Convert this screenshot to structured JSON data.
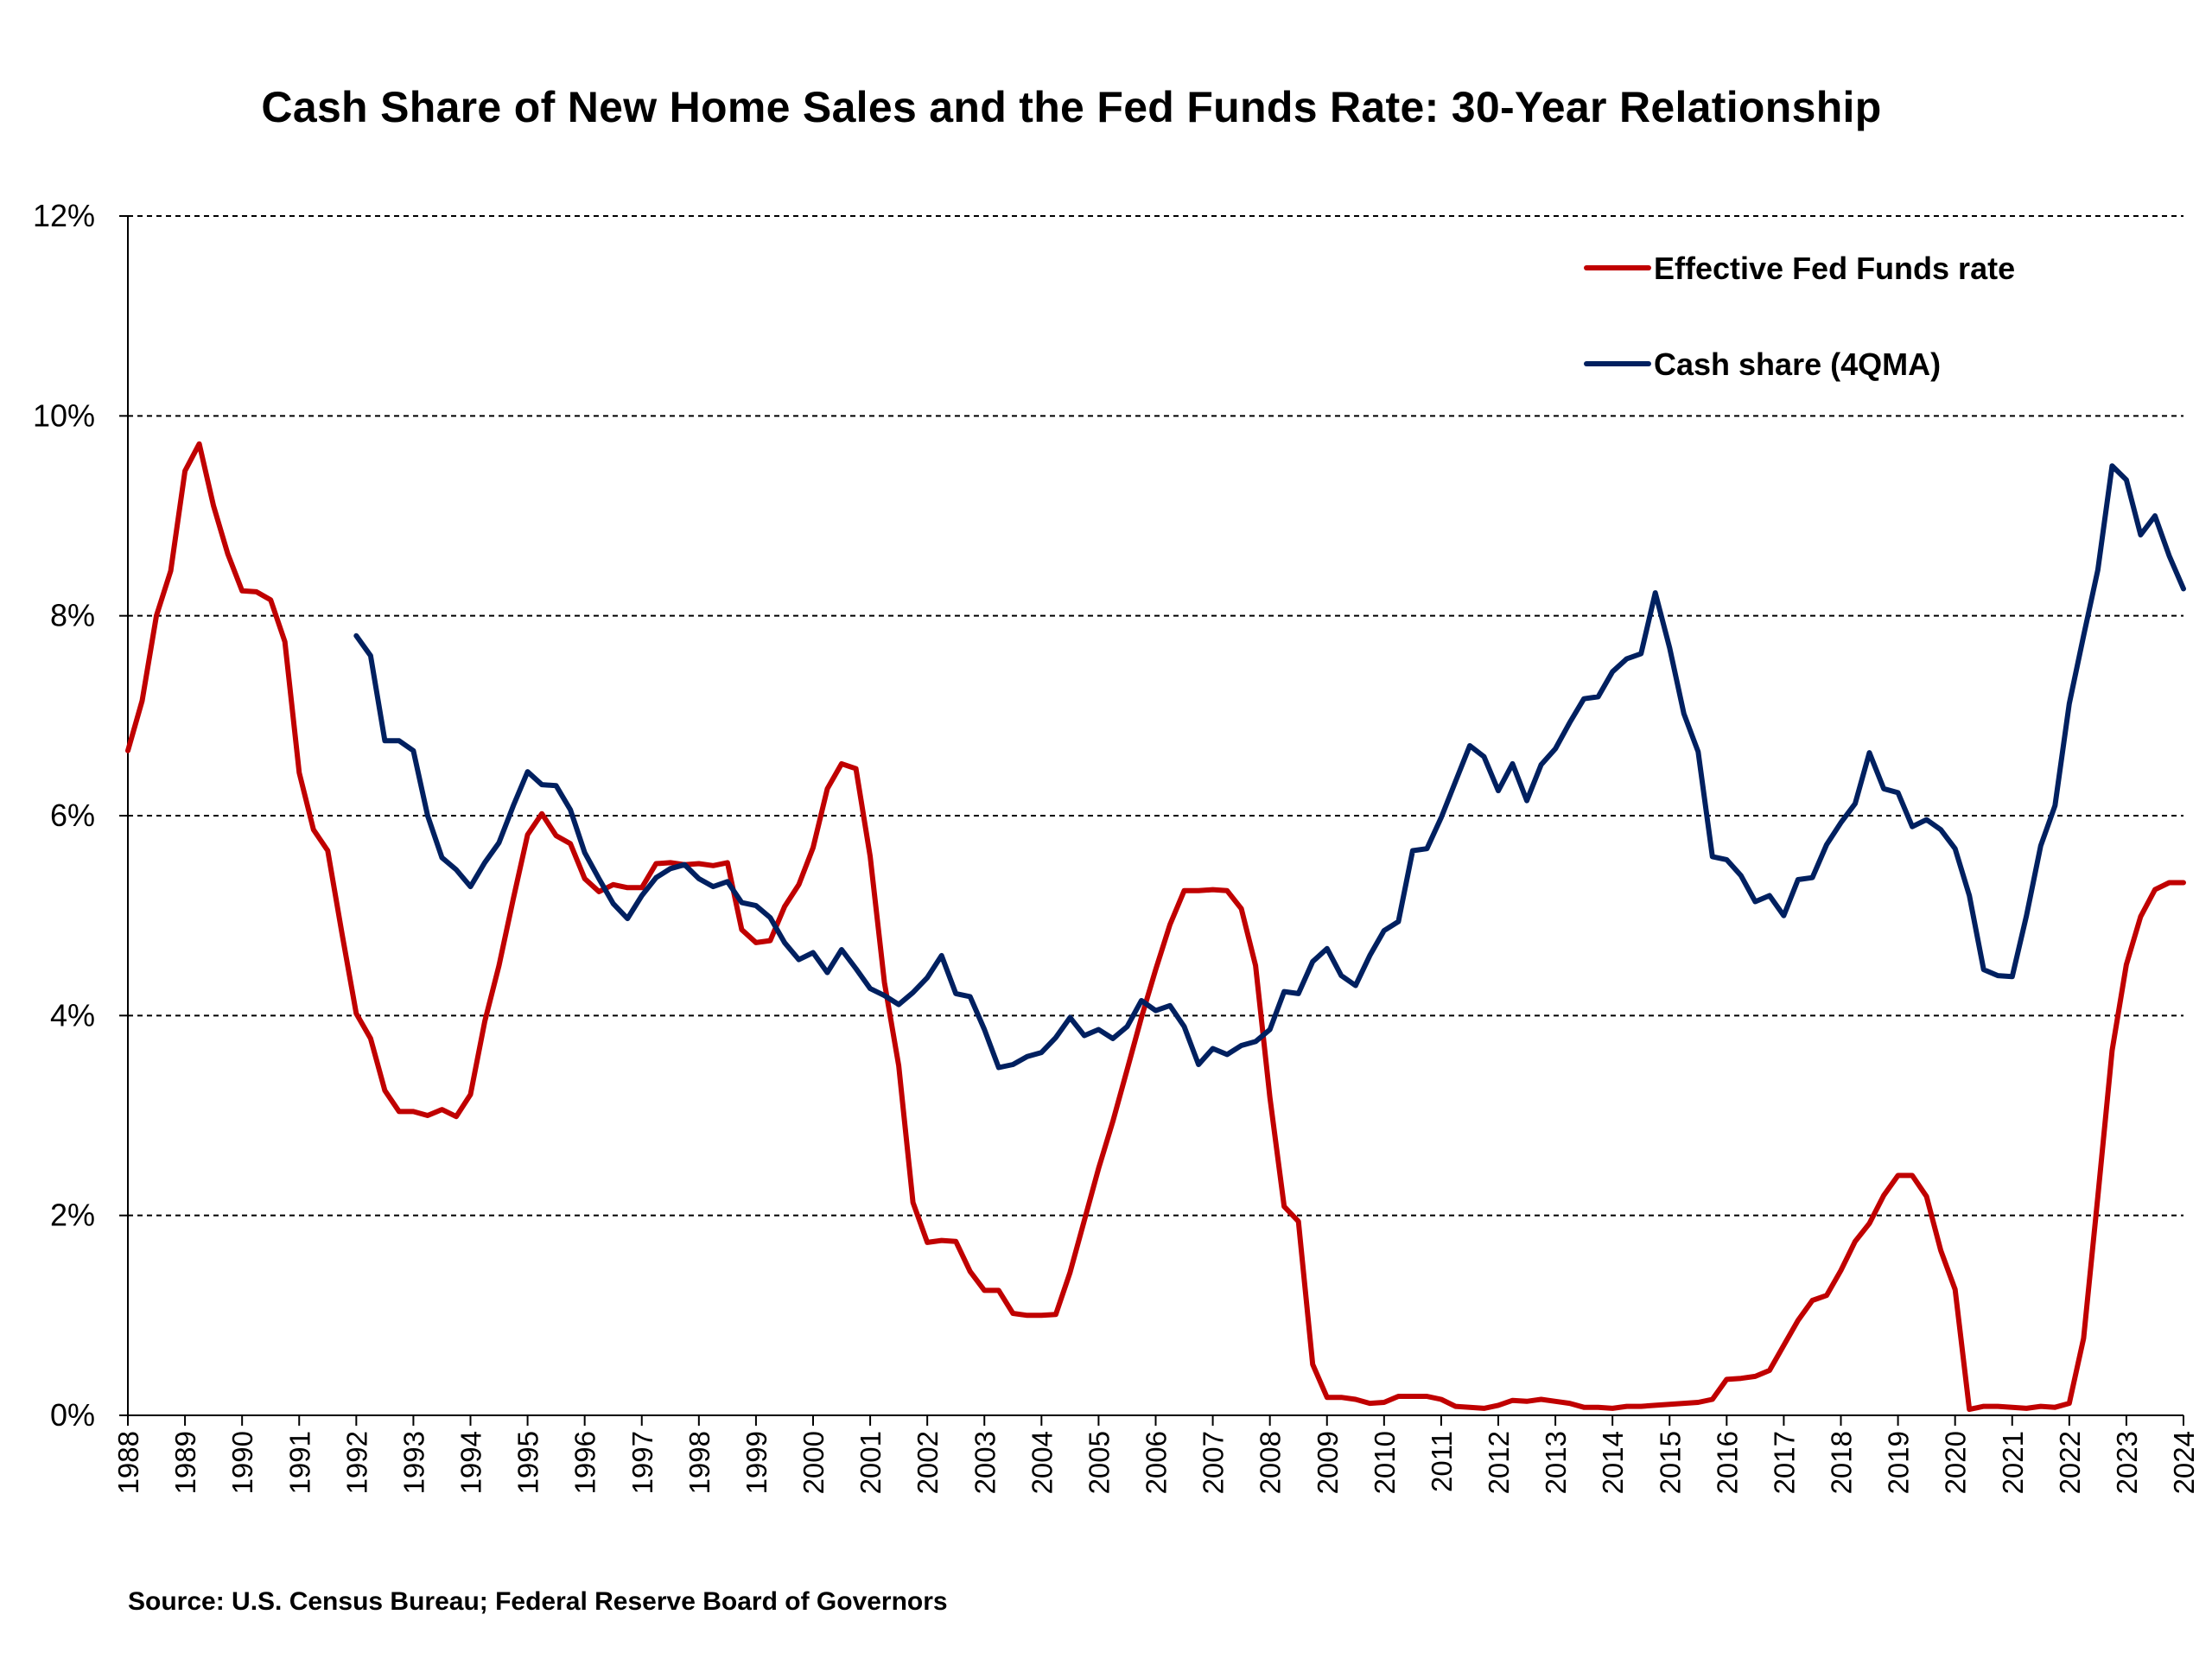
{
  "chart_data": {
    "type": "line",
    "title": "Cash Share of New Home Sales and the Fed Funds Rate: 30-Year Relationship",
    "xlabel": "",
    "ylabel": "",
    "source": "Source: U.S. Census Bureau; Federal Reserve Board of Governors",
    "x_tick_labels": [
      "1988",
      "1989",
      "1990",
      "1991",
      "1992",
      "1993",
      "1994",
      "1995",
      "1996",
      "1997",
      "1998",
      "1999",
      "2000",
      "2001",
      "2002",
      "2003",
      "2004",
      "2005",
      "2006",
      "2007",
      "2008",
      "2009",
      "2010",
      "2011",
      "2012",
      "2013",
      "2014",
      "2015",
      "2016",
      "2017",
      "2018",
      "2019",
      "2020",
      "2021",
      "2022",
      "2023",
      "2024"
    ],
    "y_tick_labels": [
      "0%",
      "2%",
      "4%",
      "6%",
      "8%",
      "10%",
      "12%"
    ],
    "ylim": [
      0,
      12
    ],
    "xlim": [
      1988,
      2024
    ],
    "grid": "horizontal dashed",
    "legend_position": "top-right",
    "colors": {
      "fed_funds": "#c00000",
      "cash_share": "#002060"
    },
    "series": [
      {
        "name": "Effective Fed Funds rate",
        "color": "#c00000",
        "x": [
          1988.0,
          1988.25,
          1988.5,
          1988.75,
          1989.0,
          1989.25,
          1989.5,
          1989.75,
          1990.0,
          1990.25,
          1990.5,
          1990.75,
          1991.0,
          1991.25,
          1991.5,
          1991.75,
          1992.0,
          1992.25,
          1992.5,
          1992.75,
          1993.0,
          1993.25,
          1993.5,
          1993.75,
          1994.0,
          1994.25,
          1994.5,
          1994.75,
          1995.0,
          1995.25,
          1995.5,
          1995.75,
          1996.0,
          1996.25,
          1996.5,
          1996.75,
          1997.0,
          1997.25,
          1997.5,
          1997.75,
          1998.0,
          1998.25,
          1998.5,
          1998.75,
          1999.0,
          1999.25,
          1999.5,
          1999.75,
          2000.0,
          2000.25,
          2000.5,
          2000.75,
          2001.0,
          2001.25,
          2001.5,
          2001.75,
          2002.0,
          2002.25,
          2002.5,
          2002.75,
          2003.0,
          2003.25,
          2003.5,
          2003.75,
          2004.0,
          2004.25,
          2004.5,
          2004.75,
          2005.0,
          2005.25,
          2005.5,
          2005.75,
          2006.0,
          2006.25,
          2006.5,
          2006.75,
          2007.0,
          2007.25,
          2007.5,
          2007.75,
          2008.0,
          2008.25,
          2008.5,
          2008.75,
          2009.0,
          2009.25,
          2009.5,
          2009.75,
          2010.0,
          2010.25,
          2010.5,
          2010.75,
          2011.0,
          2011.25,
          2011.5,
          2011.75,
          2012.0,
          2012.25,
          2012.5,
          2012.75,
          2013.0,
          2013.25,
          2013.5,
          2013.75,
          2014.0,
          2014.25,
          2014.5,
          2014.75,
          2015.0,
          2015.25,
          2015.5,
          2015.75,
          2016.0,
          2016.25,
          2016.5,
          2016.75,
          2017.0,
          2017.25,
          2017.5,
          2017.75,
          2018.0,
          2018.25,
          2018.5,
          2018.75,
          2019.0,
          2019.25,
          2019.5,
          2019.75,
          2020.0,
          2020.25,
          2020.5,
          2020.75,
          2021.0,
          2021.25,
          2021.5,
          2021.75,
          2022.0,
          2022.25,
          2022.5,
          2022.75,
          2023.0,
          2023.25,
          2023.5,
          2023.75,
          2024.0
        ],
        "values": [
          6.65,
          7.15,
          8.0,
          8.45,
          9.45,
          9.72,
          9.1,
          8.62,
          8.25,
          8.24,
          8.16,
          7.74,
          6.43,
          5.86,
          5.65,
          4.82,
          4.02,
          3.77,
          3.25,
          3.04,
          3.04,
          3.0,
          3.06,
          2.99,
          3.21,
          3.94,
          4.5,
          5.17,
          5.81,
          6.02,
          5.8,
          5.72,
          5.37,
          5.24,
          5.31,
          5.28,
          5.28,
          5.52,
          5.53,
          5.51,
          5.52,
          5.5,
          5.53,
          4.86,
          4.73,
          4.75,
          5.09,
          5.31,
          5.68,
          6.27,
          6.52,
          6.47,
          5.59,
          4.33,
          3.5,
          2.13,
          1.73,
          1.75,
          1.74,
          1.44,
          1.25,
          1.25,
          1.02,
          1.0,
          1.0,
          1.01,
          1.43,
          1.95,
          2.47,
          2.94,
          3.46,
          3.98,
          4.46,
          4.91,
          5.25,
          5.25,
          5.26,
          5.25,
          5.07,
          4.5,
          3.18,
          2.09,
          1.94,
          0.51,
          0.18,
          0.18,
          0.16,
          0.12,
          0.13,
          0.19,
          0.19,
          0.19,
          0.16,
          0.09,
          0.08,
          0.07,
          0.1,
          0.15,
          0.14,
          0.16,
          0.14,
          0.12,
          0.08,
          0.08,
          0.07,
          0.09,
          0.09,
          0.1,
          0.11,
          0.12,
          0.13,
          0.16,
          0.36,
          0.37,
          0.39,
          0.45,
          0.7,
          0.95,
          1.15,
          1.2,
          1.45,
          1.74,
          1.92,
          2.2,
          2.4,
          2.4,
          2.19,
          1.65,
          1.26,
          0.06,
          0.09,
          0.09,
          0.08,
          0.07,
          0.09,
          0.08,
          0.12,
          0.77,
          2.19,
          3.65,
          4.51,
          4.99,
          5.26,
          5.33,
          5.33
        ]
      },
      {
        "name": "Cash share (4QMA)",
        "color": "#002060",
        "x": [
          1992.0,
          1992.25,
          1992.5,
          1992.75,
          1993.0,
          1993.25,
          1993.5,
          1993.75,
          1994.0,
          1994.25,
          1994.5,
          1994.75,
          1995.0,
          1995.25,
          1995.5,
          1995.75,
          1996.0,
          1996.25,
          1996.5,
          1996.75,
          1997.0,
          1997.25,
          1997.5,
          1997.75,
          1998.0,
          1998.25,
          1998.5,
          1998.75,
          1999.0,
          1999.25,
          1999.5,
          1999.75,
          2000.0,
          2000.25,
          2000.5,
          2000.75,
          2001.0,
          2001.25,
          2001.5,
          2001.75,
          2002.0,
          2002.25,
          2002.5,
          2002.75,
          2003.0,
          2003.25,
          2003.5,
          2003.75,
          2004.0,
          2004.25,
          2004.5,
          2004.75,
          2005.0,
          2005.25,
          2005.5,
          2005.75,
          2006.0,
          2006.25,
          2006.5,
          2006.75,
          2007.0,
          2007.25,
          2007.5,
          2007.75,
          2008.0,
          2008.25,
          2008.5,
          2008.75,
          2009.0,
          2009.25,
          2009.5,
          2009.75,
          2010.0,
          2010.25,
          2010.5,
          2010.75,
          2011.0,
          2011.25,
          2011.5,
          2011.75,
          2012.0,
          2012.25,
          2012.5,
          2012.75,
          2013.0,
          2013.25,
          2013.5,
          2013.75,
          2014.0,
          2014.25,
          2014.5,
          2014.75,
          2015.0,
          2015.25,
          2015.5,
          2015.75,
          2016.0,
          2016.25,
          2016.5,
          2016.75,
          2017.0,
          2017.25,
          2017.5,
          2017.75,
          2018.0,
          2018.25,
          2018.5,
          2018.75,
          2019.0,
          2019.25,
          2019.5,
          2019.75,
          2020.0,
          2020.25,
          2020.5,
          2020.75,
          2021.0,
          2021.25,
          2021.5,
          2021.75,
          2022.0,
          2022.25,
          2022.5,
          2022.75,
          2023.0,
          2023.25,
          2023.5,
          2023.75,
          2024.0
        ],
        "values": [
          7.8,
          7.6,
          6.75,
          6.75,
          6.65,
          6.0,
          5.58,
          5.46,
          5.29,
          5.53,
          5.73,
          6.1,
          6.44,
          6.31,
          6.3,
          6.06,
          5.63,
          5.37,
          5.12,
          4.97,
          5.2,
          5.38,
          5.47,
          5.51,
          5.37,
          5.29,
          5.34,
          5.13,
          5.1,
          4.98,
          4.73,
          4.56,
          4.63,
          4.43,
          4.66,
          4.47,
          4.27,
          4.2,
          4.11,
          4.23,
          4.38,
          4.6,
          4.22,
          4.19,
          3.86,
          3.48,
          3.51,
          3.59,
          3.63,
          3.78,
          3.98,
          3.8,
          3.86,
          3.77,
          3.89,
          4.15,
          4.05,
          4.1,
          3.89,
          3.51,
          3.67,
          3.61,
          3.7,
          3.74,
          3.86,
          4.24,
          4.22,
          4.54,
          4.67,
          4.4,
          4.3,
          4.6,
          4.85,
          4.94,
          5.65,
          5.67,
          5.98,
          6.34,
          6.7,
          6.59,
          6.25,
          6.52,
          6.15,
          6.51,
          6.67,
          6.93,
          7.17,
          7.19,
          7.44,
          7.57,
          7.62,
          8.23,
          7.68,
          7.02,
          6.64,
          5.59,
          5.56,
          5.4,
          5.14,
          5.2,
          5.0,
          5.36,
          5.38,
          5.71,
          5.93,
          6.12,
          6.63,
          6.27,
          6.23,
          5.89,
          5.96,
          5.86,
          5.67,
          5.2,
          4.46,
          4.4,
          4.39,
          5.0,
          5.7,
          6.1,
          7.12,
          7.8,
          8.46,
          9.5,
          9.36,
          8.81,
          9.0,
          8.6,
          8.27
        ]
      }
    ]
  },
  "legend": {
    "items": [
      {
        "label": "Effective Fed Funds rate",
        "color": "#c00000"
      },
      {
        "label": "Cash share (4QMA)",
        "color": "#002060"
      }
    ]
  }
}
